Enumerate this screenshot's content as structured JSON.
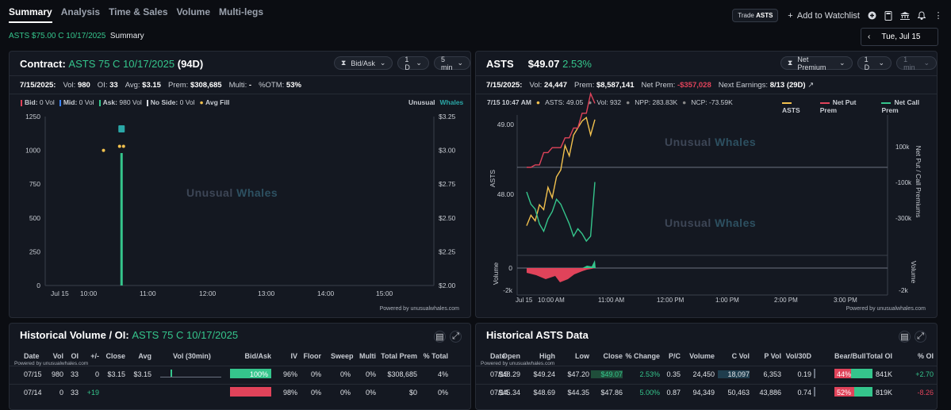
{
  "tabs": [
    "Summary",
    "Analysis",
    "Time & Sales",
    "Volume",
    "Multi-legs"
  ],
  "topbar": {
    "trade_prefix": "Trade",
    "trade_symbol": "ASTS",
    "watchlist": "Add to Watchlist"
  },
  "subheader": {
    "contract": "ASTS $75.00 C 10/17/2025",
    "label": "Summary"
  },
  "date_picker": {
    "value": "Tue, Jul 15"
  },
  "contract_panel": {
    "title_prefix": "Contract:",
    "title_contract": "ASTS 75 C 10/17/2025",
    "title_days": "(94D)",
    "controls": {
      "type": "Bid/Ask",
      "range": "1 D",
      "interval": "5 min"
    },
    "stats": {
      "date": "7/15/2025:",
      "vol_label": "Vol:",
      "vol": "980",
      "oi_label": "OI:",
      "oi": "33",
      "avg_label": "Avg:",
      "avg": "$3.15",
      "prem_label": "Prem:",
      "prem": "$308,685",
      "multi_label": "Multi:",
      "multi": "-",
      "otm_label": "%OTM:",
      "otm": "53%"
    },
    "legend": {
      "bid": "Bid:",
      "bid_v": "0 Vol",
      "mid": "Mid:",
      "mid_v": "0 Vol",
      "ask": "Ask:",
      "ask_v": "980 Vol",
      "noside": "No Side:",
      "noside_v": "0 Vol",
      "avgfill": "Avg Fill"
    },
    "brand1": "Unusual",
    "brand2": "Whales",
    "powered": "Powered by unusualwhales.com"
  },
  "stock_panel": {
    "symbol": "ASTS",
    "price": "$49.07",
    "change": "2.53%",
    "controls": {
      "type": "Net Premium",
      "range": "1 D",
      "interval": "1 min"
    },
    "stats": {
      "date": "7/15/2025:",
      "vol_label": "Vol:",
      "vol": "24,447",
      "prem_label": "Prem:",
      "prem": "$8,587,141",
      "netprem_label": "Net Prem:",
      "netprem": "-$357,028",
      "earn_label": "Next Earnings:",
      "earn": "8/13 (29D)"
    },
    "info": {
      "time": "7/15 10:47 AM",
      "asts": "ASTS: 49.05",
      "vol": "Vol: 932",
      "npp": "NPP: 283.83K",
      "ncp": "NCP: -73.59K"
    },
    "legend": {
      "asts": "ASTS",
      "put": "Net Put Prem",
      "call": "Net Call Prem"
    },
    "axis_left": "ASTS",
    "axis_right": "Net Put / Call Premiums",
    "axis_vol": "Volume",
    "brand1": "Unusual",
    "brand2": "Whales",
    "powered": "Powered by unusualwhales.com"
  },
  "colors": {
    "green": "#35c58c",
    "red": "#e0435a",
    "yellow": "#f2c14e",
    "teal": "#2aa7a7",
    "blue": "#3b82f6"
  },
  "chart_data": [
    {
      "type": "bar",
      "title": "",
      "x": [
        "Jul 15",
        "10:00",
        "11:00",
        "12:00",
        "13:00",
        "14:00",
        "15:00"
      ],
      "y_left_ticks": [
        0,
        250,
        500,
        750,
        1000,
        1250
      ],
      "y_right_ticks": [
        "$2.00",
        "$2.25",
        "$2.50",
        "$2.75",
        "$3.00",
        "$3.25"
      ],
      "ylim": [
        0,
        1250
      ],
      "y2lim": [
        2.0,
        3.25
      ],
      "series": [
        {
          "name": "Ask",
          "values": [
            {
              "time": "10:35",
              "vol": 980
            }
          ]
        }
      ],
      "avg_fill": [
        {
          "time": "10:35",
          "price": 3.15
        }
      ],
      "scatter": [
        {
          "time": "10:20",
          "vol": 1000
        },
        {
          "time": "10:35",
          "vol": 1030
        }
      ]
    },
    {
      "type": "line",
      "title": "",
      "x_ticks": [
        "Jul 15",
        "10:00 AM",
        "11:00 AM",
        "12:00 PM",
        "1:00 PM",
        "2:00 PM",
        "3:00 PM"
      ],
      "y_left_ticks": [
        48.0,
        49.0
      ],
      "y_right_ticks": [
        "100k",
        "-100k",
        "-300k"
      ],
      "volume_ticks": [
        "0",
        "-2k"
      ],
      "series": [
        {
          "name": "ASTS",
          "values": [
            47.55,
            47.7,
            47.62,
            47.85,
            47.78,
            48.1,
            47.95,
            48.25,
            48.35,
            48.7,
            48.55,
            48.85,
            48.95,
            49.05,
            49.1,
            48.85,
            49.07
          ]
        },
        {
          "name": "Net Put Prem",
          "values": [
            0,
            0,
            10,
            10,
            60,
            60,
            80,
            80,
            80,
            120,
            120,
            160,
            160,
            220,
            220,
            300,
            260
          ]
        },
        {
          "name": "Net Call Prem",
          "values": [
            -100,
            -150,
            -170,
            -230,
            -260,
            -210,
            -180,
            -130,
            -150,
            -190,
            -230,
            -280,
            -250,
            -270,
            -300,
            -280,
            -60
          ]
        }
      ]
    }
  ],
  "hist_panel": {
    "title_prefix": "Historical Volume / OI:",
    "title_contract": "ASTS 75 C 10/17/2025",
    "columns": [
      "Date",
      "Vol",
      "OI",
      "+/-",
      "Close",
      "Avg",
      "Vol (30min)",
      "Bid/Ask",
      "IV",
      "Floor",
      "Sweep",
      "Multi",
      "Total Prem",
      "% Total"
    ],
    "powered": "Powered by unusualwhales.com",
    "rows": [
      [
        "07/15",
        "980",
        "33",
        "0",
        "$3.15",
        "$3.15",
        "",
        "100%",
        "96%",
        "0%",
        "0%",
        "0%",
        "$308,685",
        "4%"
      ],
      [
        "07/14",
        "0",
        "33",
        "+19",
        "",
        "",
        "",
        "",
        "98%",
        "0%",
        "0%",
        "0%",
        "$0",
        "0%"
      ]
    ]
  },
  "stock_hist_panel": {
    "title": "Historical ASTS Data",
    "columns": [
      "Date",
      "Open",
      "High",
      "Low",
      "Close",
      "% Change",
      "P/C",
      "Volume",
      "C Vol",
      "P Vol",
      "Vol/30D",
      "Bear/Bull",
      "Total OI",
      "% OI"
    ],
    "powered": "Powered by unusualwhales.com",
    "rows": [
      [
        "07/15",
        "$48.29",
        "$49.24",
        "$47.20",
        "$49.07",
        "2.53%",
        "0.35",
        "24,450",
        "18,097",
        "6,353",
        "0.19",
        "44%",
        "841K",
        "+2.70"
      ],
      [
        "07/14",
        "$45.34",
        "$48.69",
        "$44.35",
        "$47.86",
        "5.00%",
        "0.87",
        "94,349",
        "50,463",
        "43,886",
        "0.74",
        "52%",
        "819K",
        "-8.26"
      ]
    ]
  }
}
